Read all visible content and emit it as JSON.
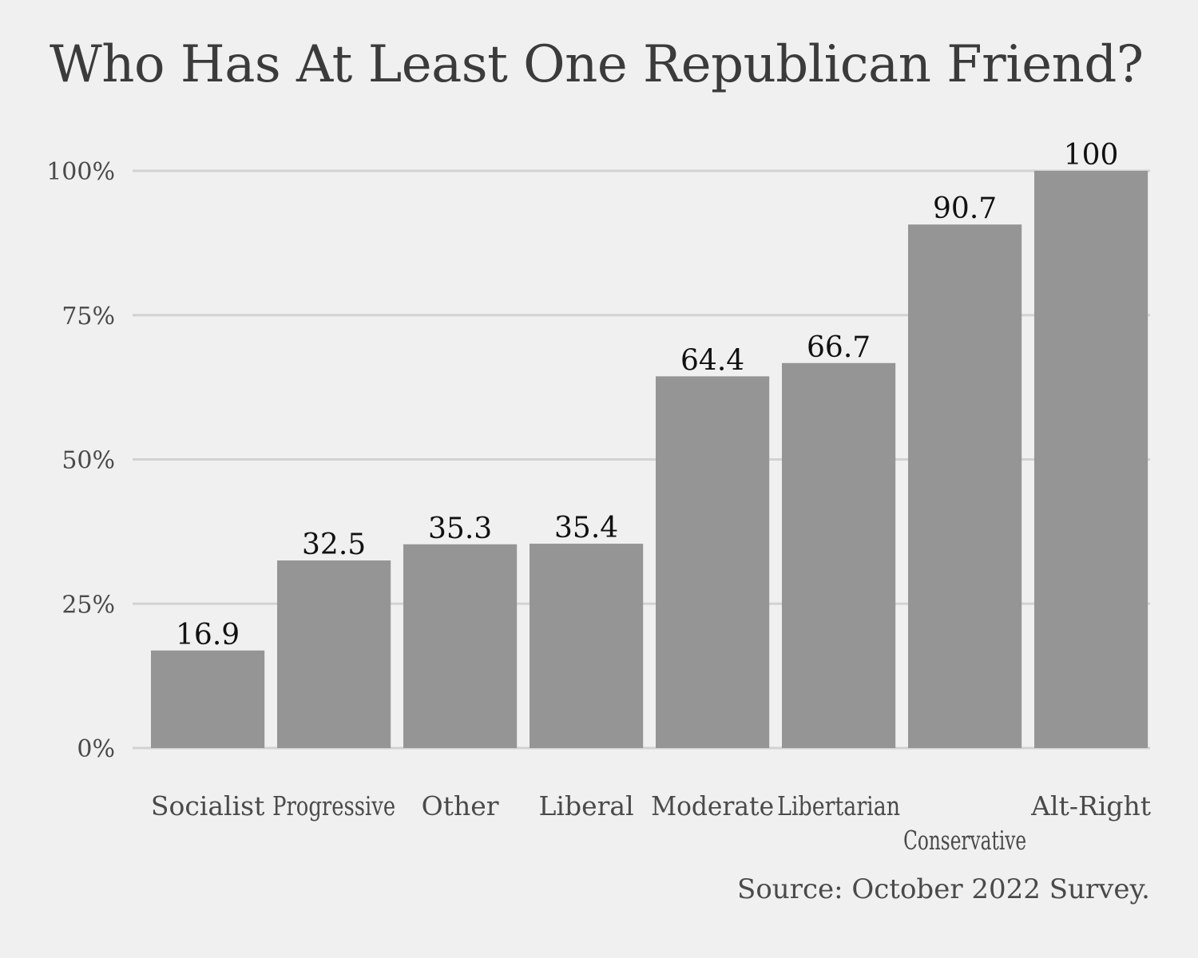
{
  "chart_data": {
    "type": "bar",
    "title": "Who Has At Least One Republican Friend?",
    "categories": [
      "Socialist",
      "Progressive",
      "Other",
      "Liberal",
      "Moderate",
      "Libertarian",
      "Conservative",
      "Alt-Right"
    ],
    "values": [
      16.9,
      32.5,
      35.3,
      35.4,
      64.4,
      66.7,
      90.7,
      100
    ],
    "value_labels": [
      "16.9",
      "32.5",
      "35.3",
      "35.4",
      "64.4",
      "66.7",
      "90.7",
      "100"
    ],
    "y_ticks": [
      0,
      25,
      50,
      75,
      100
    ],
    "y_tick_labels": [
      "0%",
      "25%",
      "50%",
      "75%",
      "100%"
    ],
    "ylim": [
      0,
      100
    ],
    "xlabel": "",
    "ylabel": "",
    "grid": true,
    "bar_color": "#959595",
    "grid_color": "#d2d2d2",
    "source": "Source: October 2022 Survey."
  }
}
